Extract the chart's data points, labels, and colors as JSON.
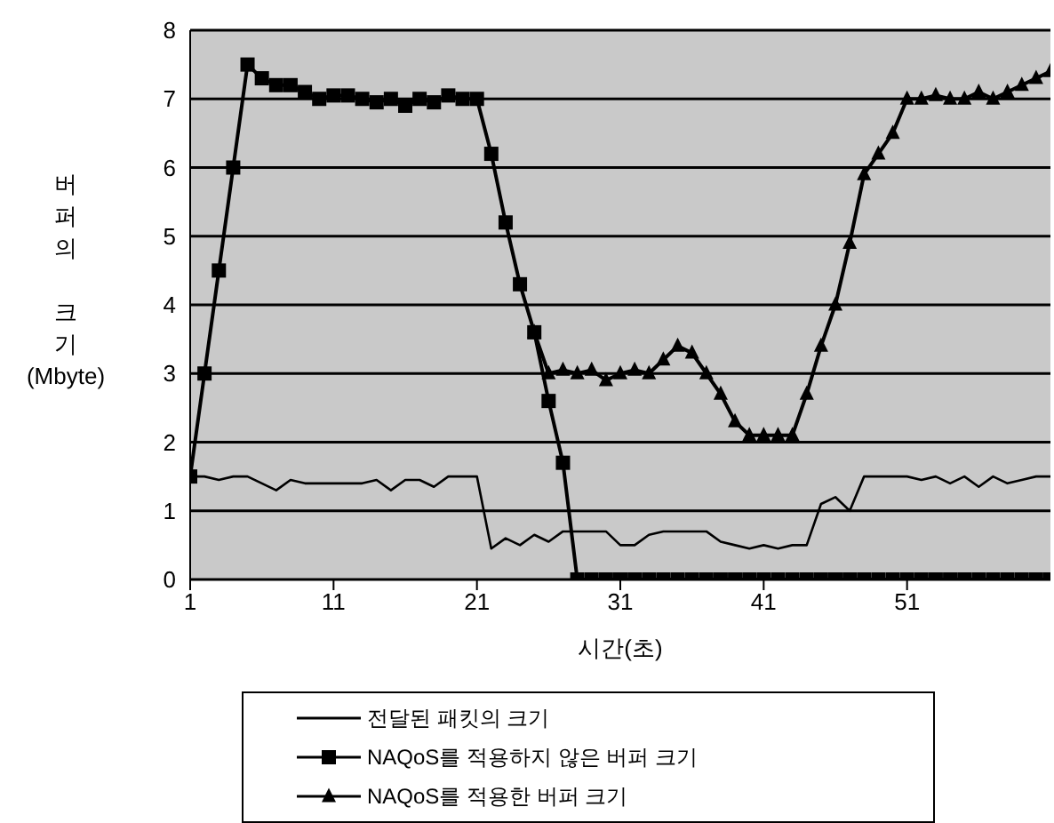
{
  "chart_data": {
    "type": "line",
    "xlabel": "시간(초)",
    "ylabel": "버퍼의 크기(Mbyte)",
    "x": [
      1,
      2,
      3,
      4,
      5,
      6,
      7,
      8,
      9,
      10,
      11,
      12,
      13,
      14,
      15,
      16,
      17,
      18,
      19,
      20,
      21,
      22,
      23,
      24,
      25,
      26,
      27,
      28,
      29,
      30,
      31,
      32,
      33,
      34,
      35,
      36,
      37,
      38,
      39,
      40,
      41,
      42,
      43,
      44,
      45,
      46,
      47,
      48,
      49,
      50,
      51,
      52,
      53,
      54,
      55,
      56,
      57,
      58,
      59,
      60,
      61
    ],
    "xlim": [
      1,
      61
    ],
    "xticks": [
      1,
      11,
      21,
      31,
      41,
      51
    ],
    "ylim": [
      0,
      8
    ],
    "yticks": [
      0,
      1,
      2,
      3,
      4,
      5,
      6,
      7,
      8
    ],
    "grid": "y",
    "legend": "bottom",
    "series": [
      {
        "name": "전달된 패킷의 크기",
        "color": "#000000",
        "marker": "none",
        "values": [
          1.5,
          1.5,
          1.45,
          1.5,
          1.5,
          1.4,
          1.3,
          1.45,
          1.4,
          1.4,
          1.4,
          1.4,
          1.4,
          1.45,
          1.3,
          1.45,
          1.45,
          1.35,
          1.5,
          1.5,
          1.5,
          0.45,
          0.6,
          0.5,
          0.65,
          0.55,
          0.7,
          0.7,
          0.7,
          0.7,
          0.5,
          0.5,
          0.65,
          0.7,
          0.7,
          0.7,
          0.7,
          0.55,
          0.5,
          0.45,
          0.5,
          0.45,
          0.5,
          0.5,
          1.1,
          1.2,
          1.0,
          1.5,
          1.5,
          1.5,
          1.5,
          1.45,
          1.5,
          1.4,
          1.5,
          1.35,
          1.5,
          1.4,
          1.45,
          1.5,
          1.5
        ]
      },
      {
        "name": "NAQoS를 적용하지 않은 버퍼 크기",
        "color": "#000000",
        "marker": "square",
        "values": [
          1.5,
          3,
          4.5,
          6,
          7.5,
          7.3,
          7.2,
          7.2,
          7.1,
          7.0,
          7.05,
          7.05,
          7.0,
          6.95,
          7.0,
          6.9,
          7.0,
          6.95,
          7.05,
          7.0,
          7.0,
          6.2,
          5.2,
          4.3,
          3.6,
          2.6,
          1.7,
          0,
          0,
          0,
          0,
          0,
          0,
          0,
          0,
          0,
          0,
          0,
          0,
          0,
          0,
          0,
          0,
          0,
          0,
          0,
          0,
          0,
          0,
          0,
          0,
          0,
          0,
          0,
          0,
          0,
          0,
          0,
          0,
          0,
          0
        ]
      },
      {
        "name": "NAQoS를 적용한 버퍼 크기",
        "color": "#000000",
        "marker": "triangle",
        "values": [
          null,
          null,
          null,
          null,
          null,
          null,
          null,
          null,
          null,
          null,
          null,
          null,
          null,
          null,
          null,
          null,
          null,
          null,
          null,
          null,
          null,
          null,
          null,
          null,
          3.6,
          3.0,
          3.05,
          3.0,
          3.05,
          2.9,
          3.0,
          3.05,
          3.0,
          3.2,
          3.4,
          3.3,
          3.0,
          2.7,
          2.3,
          2.1,
          2.1,
          2.1,
          2.1,
          2.7,
          3.4,
          4.0,
          4.9,
          5.9,
          6.2,
          6.5,
          7.0,
          7.0,
          7.05,
          7.0,
          7.0,
          7.1,
          7.0,
          7.1,
          7.2,
          7.3,
          7.4
        ]
      }
    ]
  }
}
